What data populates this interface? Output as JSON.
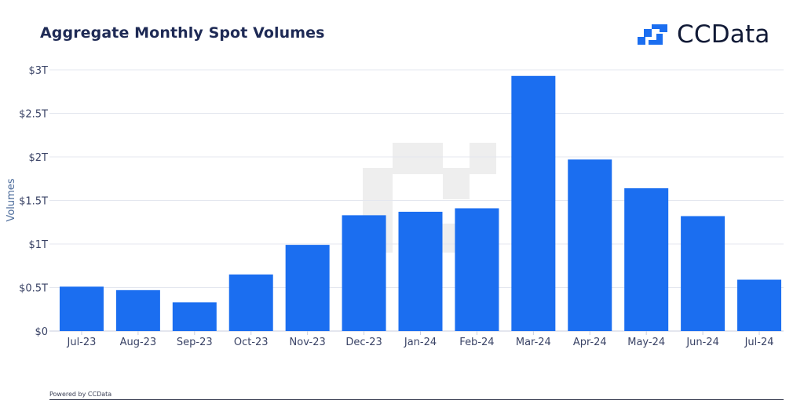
{
  "brand": {
    "name": "CCData",
    "accent": "#1b6ef0"
  },
  "footer": {
    "text": "Powered by CCData"
  },
  "chart_data": {
    "type": "bar",
    "title": "Aggregate Monthly Spot Volumes",
    "ylabel": "Volumes",
    "xlabel": "",
    "ylim": [
      0,
      3
    ],
    "y_unit": "trillion USD",
    "y_ticks": [
      0,
      0.5,
      1,
      1.5,
      2,
      2.5,
      3
    ],
    "y_tick_labels": [
      "$0",
      "$0.5T",
      "$1T",
      "$1.5T",
      "$2T",
      "$2.5T",
      "$3T"
    ],
    "grid": true,
    "legend": "none",
    "bar_color": "#1b6ef0",
    "categories": [
      "Jul-23",
      "Aug-23",
      "Sep-23",
      "Oct-23",
      "Nov-23",
      "Dec-23",
      "Jan-24",
      "Feb-24",
      "Mar-24",
      "Apr-24",
      "May-24",
      "Jun-24",
      "Jul-24"
    ],
    "values": [
      0.51,
      0.47,
      0.33,
      0.65,
      0.99,
      1.33,
      1.37,
      1.41,
      2.93,
      1.97,
      1.64,
      1.32,
      0.59
    ]
  }
}
